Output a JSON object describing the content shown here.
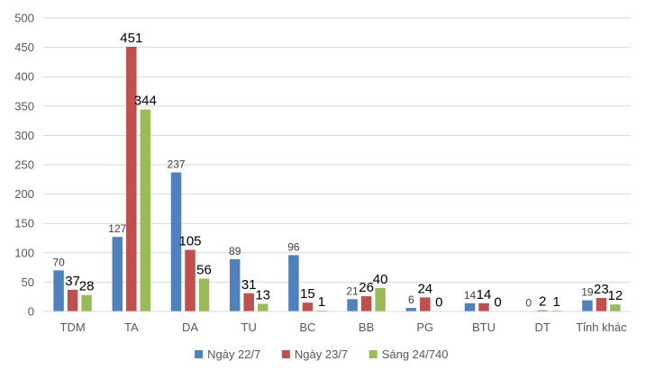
{
  "chart_data": {
    "type": "bar",
    "title": "",
    "xlabel": "",
    "ylabel": "",
    "ylim": [
      0,
      500
    ],
    "yticks": [
      0,
      50,
      100,
      150,
      200,
      250,
      300,
      350,
      400,
      450,
      500
    ],
    "grid": true,
    "legend_position": "bottom",
    "categories": [
      "TDM",
      "TA",
      "DA",
      "TU",
      "BC",
      "BB",
      "PG",
      "BTU",
      "DT",
      "Tỉnh khác"
    ],
    "series": [
      {
        "name": "Ngày 22/7",
        "color": "#4f81bd",
        "values": [
          70,
          127,
          237,
          89,
          96,
          21,
          6,
          14,
          0,
          19
        ],
        "labels": [
          "70",
          "127",
          "237",
          "89",
          "96",
          "21",
          "6",
          "14",
          "0",
          "19"
        ]
      },
      {
        "name": "Ngày 23/7",
        "color": "#c0504d",
        "values": [
          37,
          451,
          105,
          31,
          15,
          26,
          24,
          14,
          2,
          23
        ],
        "labels": [
          "37",
          "451",
          "105",
          "31",
          "15",
          "26",
          "24",
          "14",
          "2",
          "23"
        ]
      },
      {
        "name": "Sáng 24/740",
        "color": "#9bbb59",
        "values": [
          28,
          344,
          56,
          13,
          1,
          40,
          0,
          0,
          1,
          12
        ],
        "labels": [
          "28",
          "344",
          "56",
          "13",
          "1",
          "40",
          "0",
          "0",
          "1",
          "12"
        ]
      }
    ]
  }
}
